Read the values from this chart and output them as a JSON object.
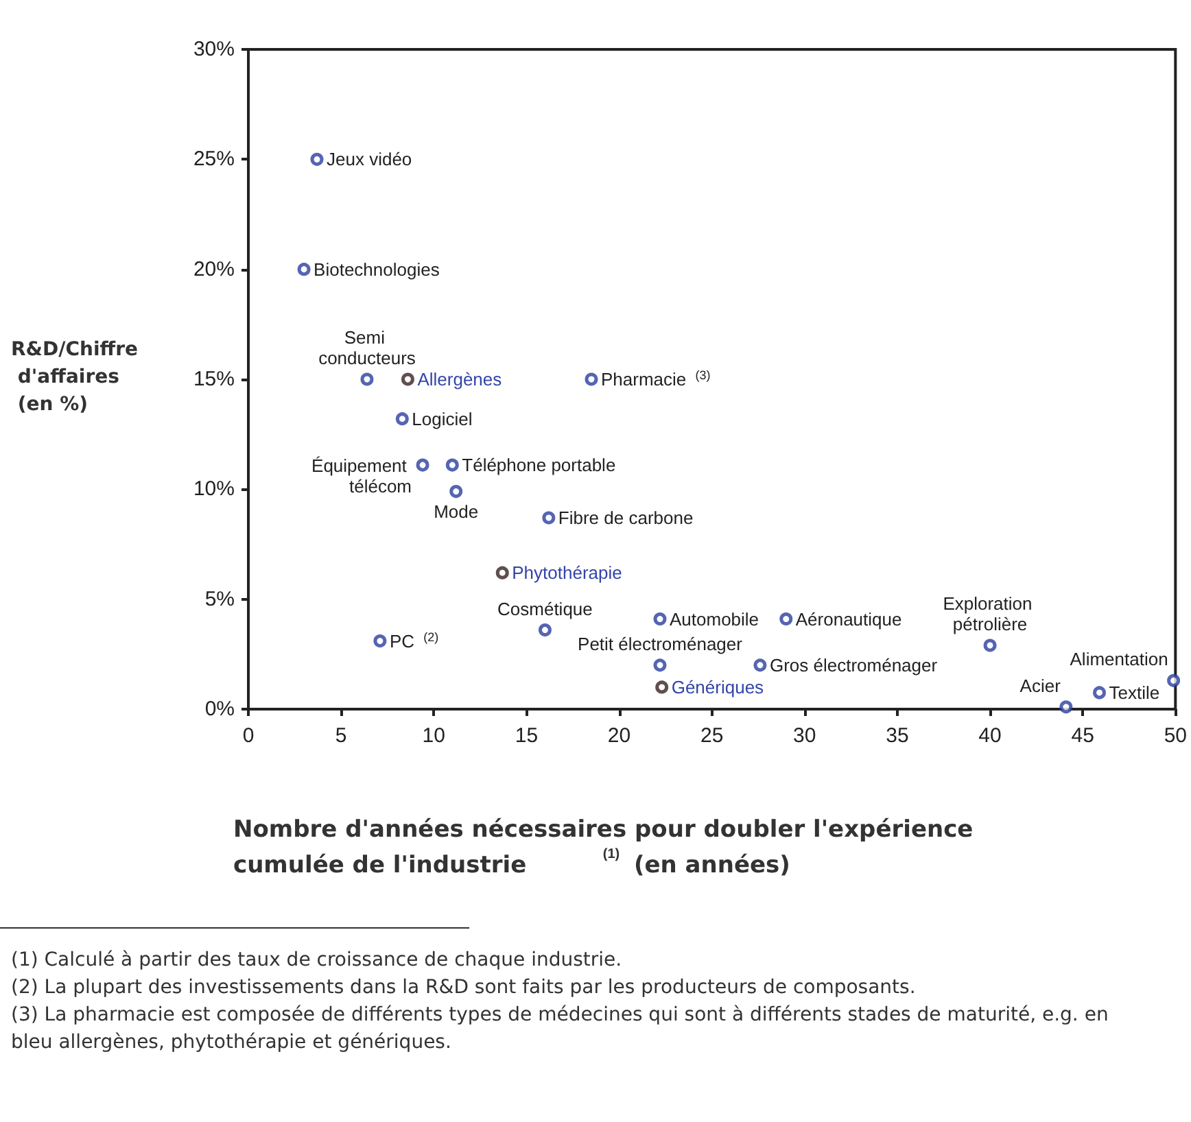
{
  "chart_data": {
    "type": "scatter",
    "xlabel": "Nombre d'années nécessaires pour doubler l'expérience cumulée de l'industrie $^{(1)}$ (en années)",
    "ylabel": "R&D/Chiffre d'affaires (en %)",
    "xlim": [
      0,
      50
    ],
    "xticks": [
      0,
      5,
      10,
      15,
      20,
      25,
      30,
      35,
      40,
      45,
      50
    ],
    "ylim": [
      0,
      30
    ],
    "yticks": [
      {
        "value": 0,
        "label": "0%"
      },
      {
        "value": 5,
        "label": "5%"
      },
      {
        "value": 10,
        "label": "10%"
      },
      {
        "value": 15,
        "label": "15%"
      },
      {
        "value": 20,
        "label": "20%"
      },
      {
        "value": 25,
        "label": "25%"
      },
      {
        "value": 30,
        "label": "30%"
      }
    ],
    "grid": false,
    "marker": "circle",
    "series": [
      {
        "color": "#2b3ea0",
        "x": [
          3.7,
          3.0,
          6.4,
          18.5,
          8.3,
          9.4,
          11.0,
          11.2,
          16.2,
          7.1,
          16.0,
          22.2,
          29.0,
          22.2,
          27.6,
          40.0,
          44.1,
          45.9,
          49.9
        ],
        "values": [
          25,
          20,
          15,
          15,
          13.2,
          11.1,
          11.1,
          9.9,
          8.7,
          3.1,
          3.6,
          4.1,
          4.1,
          2.0,
          2.0,
          2.9,
          0.1,
          0.75,
          1.3
        ]
      },
      {
        "color": "#3a2222",
        "x": [
          8.6,
          13.7,
          22.3
        ],
        "values": [
          15,
          6.2,
          1.0
        ]
      }
    ],
    "annotations": [
      {
        "text": "Jeux vidéo",
        "x": 3.7,
        "y": 25
      },
      {
        "text": "Biotechnologies",
        "x": 3.0,
        "y": 20
      },
      {
        "text": "Semi conducteurs",
        "x": 6.4,
        "y": 15
      },
      {
        "text": "Pharmacie $^{(3)}$",
        "x": 18.5,
        "y": 15
      },
      {
        "text": "Logiciel",
        "x": 8.3,
        "y": 13.2
      },
      {
        "text": "Équipement télécom",
        "x": 9.4,
        "y": 11.1
      },
      {
        "text": "Téléphone portable",
        "x": 11.0,
        "y": 11.1
      },
      {
        "text": "Mode",
        "x": 11.2,
        "y": 9.9
      },
      {
        "text": "Fibre de carbone",
        "x": 16.2,
        "y": 8.7
      },
      {
        "text": "PC $^{(2)}$",
        "x": 7.1,
        "y": 3.1
      },
      {
        "text": "Cosmétique",
        "x": 16.0,
        "y": 3.6
      },
      {
        "text": "Automobile",
        "x": 22.2,
        "y": 4.1
      },
      {
        "text": "Aéronautique",
        "x": 29.0,
        "y": 4.1
      },
      {
        "text": "Petit électroménager",
        "x": 22.2,
        "y": 2.0
      },
      {
        "text": "Gros électroménager",
        "x": 27.6,
        "y": 2.0
      },
      {
        "text": "Exploration pétrolière",
        "x": 40.0,
        "y": 2.9
      },
      {
        "text": "Acier",
        "x": 44.1,
        "y": 0.1
      },
      {
        "text": "Textile",
        "x": 45.9,
        "y": 0.75
      },
      {
        "text": "Alimentation",
        "x": 49.9,
        "y": 1.3
      },
      {
        "text": "Allergènes",
        "x": 8.6,
        "y": 15
      },
      {
        "text": "Phytothérapie",
        "x": 13.7,
        "y": 6.2
      },
      {
        "text": "Génériques",
        "x": 22.3,
        "y": 1.0
      },
      "(1) Calculé à partir des taux de croissance de chaque industrie.",
      "(2) La plupart des investissements dans la R&D sont faits par les producteurs de composants.",
      "(3) La pharmacie est composée de différents types de médecines qui sont à différents stades de maturité, e.g. en bleu allergènes, phytothérapie et génériques."
    ]
  }
}
